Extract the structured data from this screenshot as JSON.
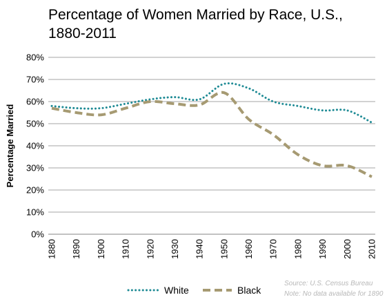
{
  "chart_data": {
    "type": "line",
    "title": "Percentage of Women Married by Race, U.S., 1880-2011",
    "xlabel": "",
    "ylabel": "Percentage Married",
    "x": [
      1880,
      1890,
      1900,
      1910,
      1920,
      1930,
      1940,
      1950,
      1960,
      1970,
      1980,
      1990,
      2000,
      2010
    ],
    "xlim": [
      1880,
      2010
    ],
    "ylim": [
      0,
      80
    ],
    "x_ticks": [
      "1880",
      "1890",
      "1900",
      "1910",
      "1920",
      "1930",
      "1940",
      "1950",
      "1960",
      "1970",
      "1980",
      "1990",
      "2000",
      "2010"
    ],
    "y_ticks": [
      "0%",
      "10%",
      "20%",
      "30%",
      "40%",
      "50%",
      "60%",
      "70%",
      "80%"
    ],
    "grid": "horizontal",
    "legend_position": "bottom",
    "series": [
      {
        "name": "White",
        "values": [
          58,
          57,
          57,
          59,
          61,
          62,
          61,
          68,
          66,
          60,
          58,
          56,
          56,
          50.5
        ],
        "color": "#1f8b95",
        "style": "dotted"
      },
      {
        "name": "Black",
        "values": [
          57,
          55,
          54,
          57,
          60,
          59,
          58.5,
          64,
          52,
          45,
          36,
          31,
          31,
          26
        ],
        "color": "#a69a72",
        "style": "dashed"
      }
    ],
    "annotations": [
      "Source: U.S. Census Bureau",
      "Note: No data available for 1890"
    ]
  }
}
